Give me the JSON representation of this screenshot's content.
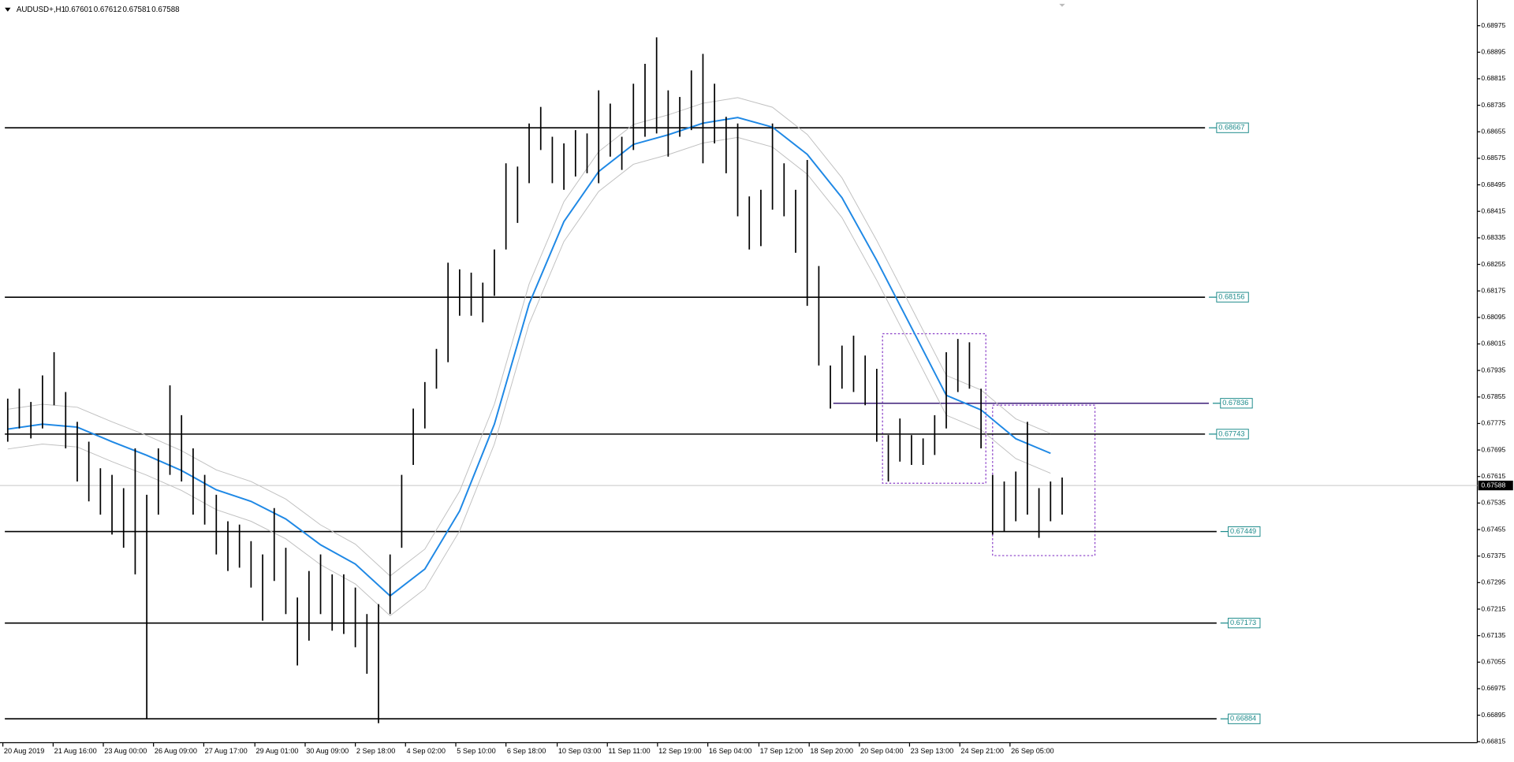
{
  "chart_data": {
    "type": "hl",
    "title": "AUDUSD+,H1",
    "ohlc_header": [
      0.67601,
      0.67612,
      0.67581,
      0.67588
    ],
    "bar_color": "#000000",
    "ylim": [
      0.66812,
      0.69038
    ],
    "yticks": [
      0.68975,
      0.68895,
      0.68815,
      0.68735,
      0.68655,
      0.68575,
      0.68495,
      0.68415,
      0.68335,
      0.68255,
      0.68175,
      0.68095,
      0.68015,
      0.67935,
      0.67855,
      0.67775,
      0.67695,
      0.67615,
      0.67535,
      0.67455,
      0.67375,
      0.67295,
      0.67215,
      0.67135,
      0.67055,
      0.66975,
      0.66895,
      0.66815
    ],
    "xlim": [
      -0.5,
      126.83
    ],
    "xticks": [
      {
        "value": -0.42,
        "label": "20 Aug 2019"
      },
      {
        "value": 3.92,
        "label": "21 Aug 16:00"
      },
      {
        "value": 8.25,
        "label": "23 Aug 00:00"
      },
      {
        "value": 12.58,
        "label": "26 Aug 09:00"
      },
      {
        "value": 16.92,
        "label": "27 Aug 17:00"
      },
      {
        "value": 21.33,
        "label": "29 Aug 01:00"
      },
      {
        "value": 25.67,
        "label": "30 Aug 09:00"
      },
      {
        "value": 30,
        "label": "2 Sep 18:00"
      },
      {
        "value": 34.33,
        "label": "4 Sep 02:00"
      },
      {
        "value": 38.67,
        "label": "5 Sep 10:00"
      },
      {
        "value": 43,
        "label": "6 Sep 18:00"
      },
      {
        "value": 47.42,
        "label": "10 Sep 03:00"
      },
      {
        "value": 51.75,
        "label": "11 Sep 11:00"
      },
      {
        "value": 56.08,
        "label": "12 Sep 19:00"
      },
      {
        "value": 60.42,
        "label": "16 Sep 04:00"
      },
      {
        "value": 64.83,
        "label": "17 Sep 12:00"
      },
      {
        "value": 69.17,
        "label": "18 Sep 20:00"
      },
      {
        "value": 73.5,
        "label": "20 Sep 04:00"
      },
      {
        "value": 77.83,
        "label": "23 Sep 13:00"
      },
      {
        "value": 82.17,
        "label": "24 Sep 21:00"
      },
      {
        "value": 86.5,
        "label": "26 Sep 05:00"
      }
    ],
    "bars": {
      "x": [
        0,
        1,
        2,
        3,
        4,
        5,
        6,
        7,
        8,
        9,
        10,
        11,
        12,
        13,
        14,
        15,
        16,
        17,
        18,
        19,
        20,
        21,
        22,
        23,
        24,
        25,
        26,
        27,
        28,
        29,
        30,
        31,
        32,
        33,
        34,
        35,
        36,
        37,
        38,
        39,
        40,
        41,
        42,
        43,
        44,
        45,
        46,
        47,
        48,
        49,
        50,
        51,
        52,
        53,
        54,
        55,
        56,
        57,
        58,
        59,
        60,
        61,
        62,
        63,
        64,
        65,
        66,
        67,
        68,
        69,
        70,
        71,
        72,
        73,
        74,
        75,
        76,
        77,
        78,
        79,
        80,
        81,
        82,
        83,
        84,
        85,
        86,
        87,
        88,
        89,
        90,
        91
      ],
      "high": [
        0.6785,
        0.6788,
        0.6784,
        0.6792,
        0.6799,
        0.6787,
        0.6778,
        0.6772,
        0.6764,
        0.6762,
        0.6758,
        0.677,
        0.6756,
        0.677,
        0.6789,
        0.678,
        0.677,
        0.6762,
        0.6756,
        0.6748,
        0.6747,
        0.6742,
        0.6738,
        0.6752,
        0.674,
        0.6725,
        0.6733,
        0.6738,
        0.6732,
        0.6732,
        0.6728,
        0.672,
        0.6723,
        0.6738,
        0.6762,
        0.6782,
        0.679,
        0.68,
        0.6826,
        0.6824,
        0.6823,
        0.682,
        0.683,
        0.6856,
        0.6855,
        0.6868,
        0.6873,
        0.6864,
        0.6862,
        0.6866,
        0.6865,
        0.6878,
        0.6874,
        0.6864,
        0.688,
        0.6886,
        0.6894,
        0.6878,
        0.6876,
        0.6884,
        0.6889,
        0.688,
        0.687,
        0.6868,
        0.6846,
        0.6848,
        0.6868,
        0.6856,
        0.6848,
        0.6857,
        0.6825,
        0.6795,
        0.6801,
        0.6804,
        0.6798,
        0.6794,
        0.6774,
        0.6779,
        0.6774,
        0.6773,
        0.678,
        0.6799,
        0.6803,
        0.6802,
        0.6788,
        0.6762,
        0.676,
        0.6763,
        0.6778,
        0.6758,
        0.676,
        0.67612
      ],
      "low": [
        0.6772,
        0.6776,
        0.6773,
        0.6776,
        0.6783,
        0.677,
        0.676,
        0.6754,
        0.675,
        0.6744,
        0.674,
        0.6732,
        0.66885,
        0.675,
        0.6762,
        0.676,
        0.675,
        0.6747,
        0.6738,
        0.6733,
        0.6734,
        0.6728,
        0.6718,
        0.673,
        0.672,
        0.67045,
        0.6712,
        0.672,
        0.6715,
        0.6714,
        0.671,
        0.6702,
        0.66871,
        0.672,
        0.674,
        0.6765,
        0.6776,
        0.6788,
        0.6796,
        0.681,
        0.681,
        0.6808,
        0.6816,
        0.683,
        0.6838,
        0.685,
        0.686,
        0.685,
        0.6848,
        0.6852,
        0.6853,
        0.685,
        0.6858,
        0.6854,
        0.686,
        0.6864,
        0.6865,
        0.6858,
        0.6864,
        0.6866,
        0.6856,
        0.6862,
        0.6853,
        0.684,
        0.683,
        0.6831,
        0.6842,
        0.684,
        0.6829,
        0.6813,
        0.6795,
        0.6782,
        0.6788,
        0.6787,
        0.6783,
        0.6772,
        0.676,
        0.6766,
        0.6765,
        0.6765,
        0.6768,
        0.6776,
        0.6787,
        0.6788,
        0.677,
        0.6744,
        0.6745,
        0.6748,
        0.675,
        0.6743,
        0.6748,
        0.675
      ]
    },
    "overlays": [
      {
        "color": "#c0c0c0",
        "x": [
          0,
          3,
          6,
          9,
          12,
          15,
          18,
          21,
          24,
          27,
          30,
          33,
          36,
          39,
          42,
          45,
          48,
          51,
          54,
          57,
          60,
          63,
          66,
          69,
          72,
          75,
          78,
          81,
          84,
          87,
          90
        ],
        "values": [
          0.67818,
          0.67833,
          0.67824,
          0.6778,
          0.67739,
          0.67693,
          0.67635,
          0.676,
          0.67547,
          0.67469,
          0.67411,
          0.67315,
          0.67396,
          0.67571,
          0.67833,
          0.68196,
          0.68444,
          0.68595,
          0.68677,
          0.68706,
          0.68741,
          0.68758,
          0.68729,
          0.68647,
          0.68516,
          0.68327,
          0.68124,
          0.6792,
          0.67876,
          0.67789,
          0.67745
        ]
      },
      {
        "color": "#c0c0c0",
        "x": [
          0,
          3,
          6,
          9,
          12,
          15,
          18,
          21,
          24,
          27,
          30,
          33,
          36,
          39,
          42,
          45,
          48,
          51,
          54,
          57,
          60,
          63,
          66,
          69,
          72,
          75,
          78,
          81,
          84,
          87,
          90
        ],
        "values": [
          0.67698,
          0.67713,
          0.67704,
          0.6766,
          0.67619,
          0.67573,
          0.67515,
          0.6748,
          0.67427,
          0.67349,
          0.67291,
          0.67195,
          0.67276,
          0.67451,
          0.67713,
          0.68076,
          0.68324,
          0.68475,
          0.68557,
          0.68586,
          0.68621,
          0.68638,
          0.68609,
          0.68527,
          0.68396,
          0.68207,
          0.68004,
          0.678,
          0.67756,
          0.67669,
          0.67625
        ]
      },
      {
        "color": "#1e88e5",
        "x": [
          0,
          3,
          6,
          9,
          12,
          15,
          18,
          21,
          24,
          27,
          30,
          33,
          36,
          39,
          42,
          45,
          48,
          51,
          54,
          57,
          60,
          63,
          66,
          69,
          72,
          75,
          78,
          81,
          84,
          87,
          90
        ],
        "values": [
          0.67758,
          0.67773,
          0.67764,
          0.6772,
          0.67679,
          0.67633,
          0.67575,
          0.6754,
          0.67487,
          0.67409,
          0.67351,
          0.67255,
          0.67336,
          0.67511,
          0.67773,
          0.68136,
          0.68384,
          0.68535,
          0.68617,
          0.68646,
          0.68681,
          0.68698,
          0.68669,
          0.68587,
          0.68456,
          0.68267,
          0.68064,
          0.6786,
          0.67816,
          0.67729,
          0.67685
        ]
      }
    ],
    "levels": [
      {
        "value": 0.68667,
        "color": "#000000"
      },
      {
        "value": 0.68156,
        "color": "#000000"
      },
      {
        "value": 0.67836,
        "color": "#3c1e78"
      },
      {
        "value": 0.67743,
        "color": "#000000"
      },
      {
        "value": 0.67449,
        "color": "#000000"
      },
      {
        "value": 0.67173,
        "color": "#000000"
      },
      {
        "value": 0.66884,
        "color": "#000000"
      }
    ],
    "level_label_color": "#1b8a8a",
    "current_price": 0.67588
  }
}
